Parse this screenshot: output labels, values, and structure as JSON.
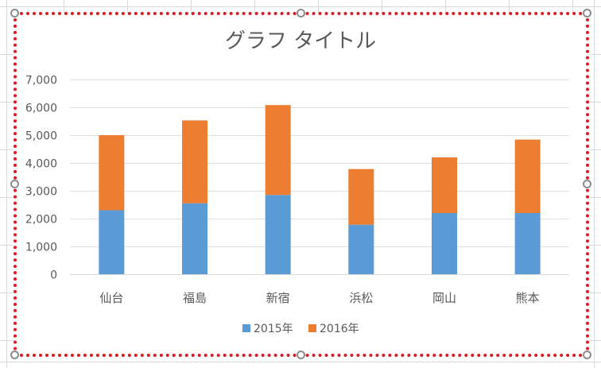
{
  "chart_data": {
    "type": "bar",
    "stacked": true,
    "title": "グラフ タイトル",
    "categories": [
      "仙台",
      "福島",
      "新宿",
      "浜松",
      "岡山",
      "熊本"
    ],
    "series": [
      {
        "name": "2015年",
        "color": "#5b9bd5",
        "values": [
          2300,
          2550,
          2850,
          1780,
          2200,
          2200
        ]
      },
      {
        "name": "2016年",
        "color": "#ed7d31",
        "values": [
          2700,
          2980,
          3230,
          2000,
          2000,
          2640
        ]
      }
    ],
    "ylim": [
      0,
      7000
    ],
    "yticks": [
      "0",
      "1,000",
      "2,000",
      "3,000",
      "4,000",
      "5,000",
      "6,000",
      "7,000"
    ],
    "ytick_values": [
      0,
      1000,
      2000,
      3000,
      4000,
      5000,
      6000,
      7000
    ],
    "grid": true,
    "legend_position": "bottom"
  }
}
